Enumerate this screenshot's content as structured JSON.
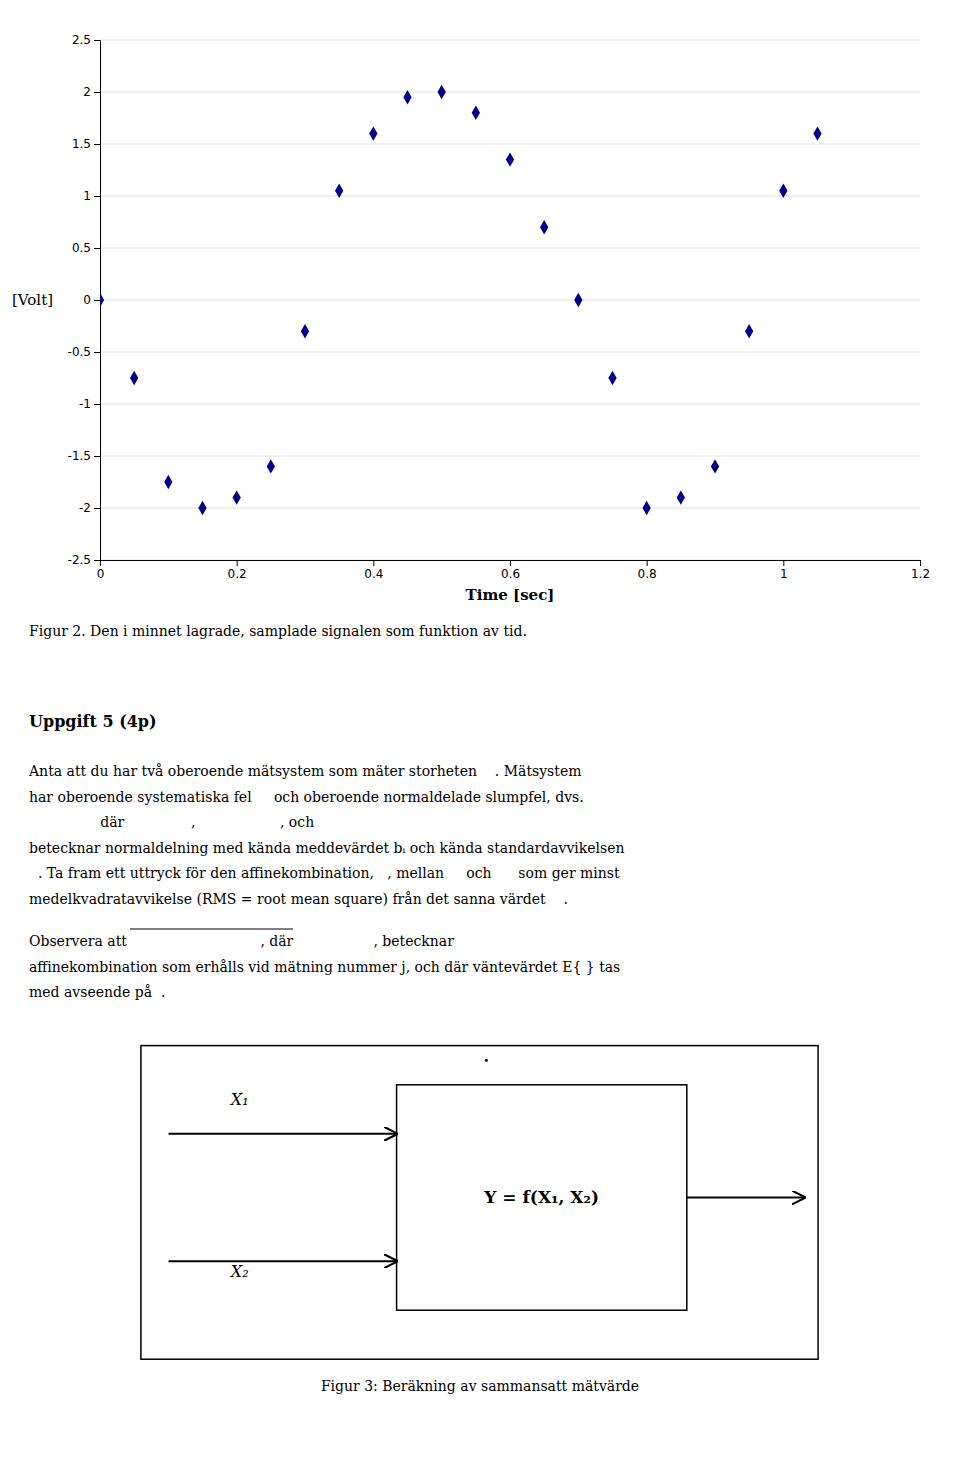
{
  "chart_data": {
    "type": "scatter",
    "x_label": "Time [sec]",
    "y_label": "[Volt]",
    "x": [
      0.0,
      0.05,
      0.1,
      0.15,
      0.2,
      0.25,
      0.3,
      0.35,
      0.4,
      0.45,
      0.5,
      0.55,
      0.6,
      0.65,
      0.7,
      0.75,
      0.8,
      0.85,
      0.9,
      0.95,
      1.0,
      1.05
    ],
    "values": [
      0.0,
      -0.75,
      -1.75,
      -2.0,
      -1.9,
      -1.6,
      -0.3,
      1.05,
      1.6,
      1.95,
      2.0,
      1.8,
      1.35,
      0.7,
      0.0,
      -0.75,
      -2.0,
      -1.9,
      -1.6,
      -0.3,
      1.05,
      1.6
    ],
    "color": "#00008B",
    "marker": "diamond",
    "xlim": [
      0,
      1.2
    ],
    "ylim": [
      -2.5,
      2.5
    ],
    "xticks": [
      0,
      0.2,
      0.4,
      0.6,
      0.8,
      1,
      1.2
    ],
    "yticks": [
      -2.5,
      -2,
      -1.5,
      -1,
      -0.5,
      0,
      0.5,
      1,
      1.5,
      2,
      2.5
    ],
    "grid": "y",
    "background_color": "#ffffff",
    "annotations": [
      "Figur 2. Den i minnet lagrade, samplade signalen som funktion av tid.",
      "Uppgift 5 (4p)",
      "Anta att du har två oberoende mätsystem som mäter storheten    . Mätsystem",
      "har oberoende systematiska fel     och oberoende normaldelade slumpfel, dvs.",
      "                där               ,                   , och",
      "betecknar normaldelning med kända meddevärdet bᵢ och kända standardavvikelsen",
      "  . Ta fram ett uttryck för den affinekombination,   , mellan     och      som ger minst",
      "medelkvadratavvikelse (RMS = root mean square) från det sanna värdet    .",
      "Observera att                              , där                  , betecknar",
      "affinekombination som erhålls vid mätning nummer j, och där väntevärdet E{ } tas",
      "med avseende på  .",
      "X₁",
      "X₂",
      "Y = f(X₁, X₂)",
      "Figur 3: Beräkning av sammansatt mätvärde"
    ]
  }
}
